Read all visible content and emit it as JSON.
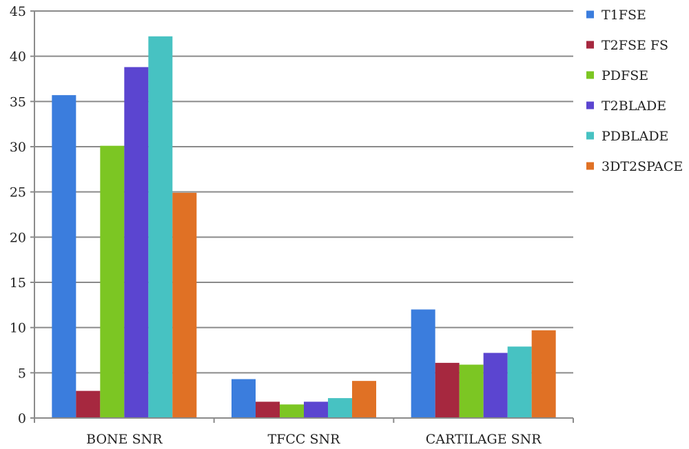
{
  "chart_data": {
    "type": "bar",
    "title": "",
    "xlabel": "",
    "ylabel": "",
    "categories": [
      "BONE SNR",
      "TFCC SNR",
      "CARTILAGE SNR"
    ],
    "ylim": [
      0,
      45
    ],
    "yticks": [
      "0",
      "5",
      "10",
      "15",
      "20",
      "25",
      "30",
      "35",
      "40",
      "45"
    ],
    "grid": true,
    "legend_position": "right",
    "series": [
      {
        "name": "T1FSE",
        "color": "#3b7ddd",
        "values": [
          35.7,
          4.3,
          12.0
        ]
      },
      {
        "name": "T2FSE FS",
        "color": "#a6283f",
        "values": [
          3.0,
          1.8,
          6.1
        ]
      },
      {
        "name": "PDFSE",
        "color": "#7cc623",
        "values": [
          30.1,
          1.5,
          5.9
        ]
      },
      {
        "name": "T2BLADE",
        "color": "#5b45d0",
        "values": [
          38.8,
          1.8,
          7.2
        ]
      },
      {
        "name": "PDBLADE",
        "color": "#47c2c2",
        "values": [
          42.2,
          2.2,
          7.9
        ]
      },
      {
        "name": "3DT2SPACE",
        "color": "#e07125",
        "values": [
          24.9,
          4.1,
          9.7
        ]
      }
    ]
  }
}
